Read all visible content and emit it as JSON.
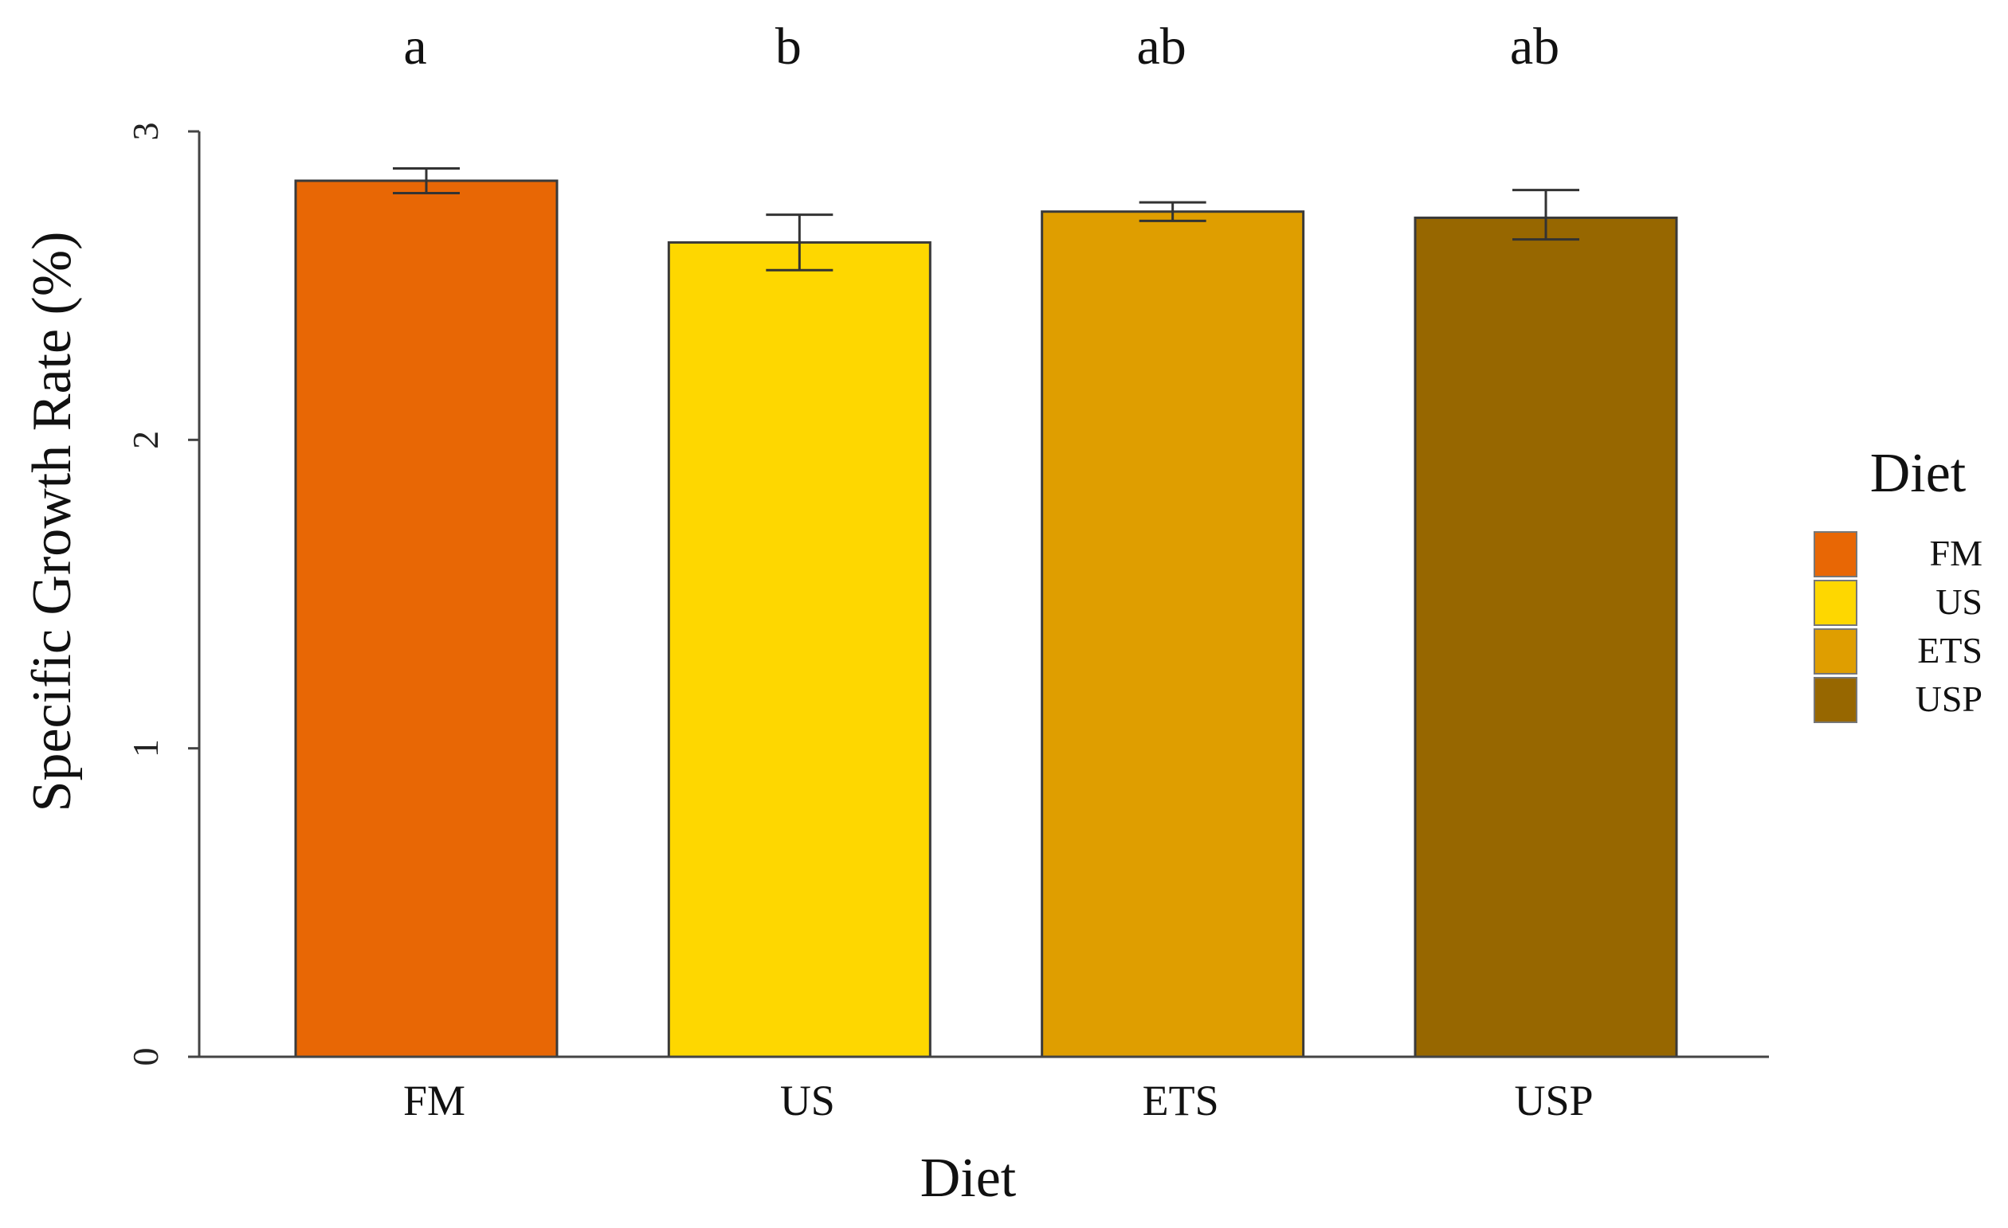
{
  "chart_data": {
    "type": "bar",
    "title": "",
    "xlabel": "Diet",
    "ylabel": "Specific Growth Rate (%)",
    "ylim": [
      0,
      3
    ],
    "yticks": [
      0,
      1,
      2,
      3
    ],
    "grid": false,
    "categories": [
      "FM",
      "US",
      "ETS",
      "USP"
    ],
    "values": [
      2.84,
      2.64,
      2.74,
      2.72
    ],
    "error_low": [
      2.8,
      2.55,
      2.71,
      2.65
    ],
    "error_high": [
      2.88,
      2.73,
      2.77,
      2.81
    ],
    "significance_letters": [
      "a",
      "b",
      "ab",
      "ab"
    ],
    "colors": [
      "#E86705",
      "#FED700",
      "#DF9E00",
      "#976700"
    ],
    "legend": {
      "title": "Diet",
      "position": "right",
      "entries": [
        "FM",
        "US",
        "ETS",
        "USP"
      ]
    }
  }
}
